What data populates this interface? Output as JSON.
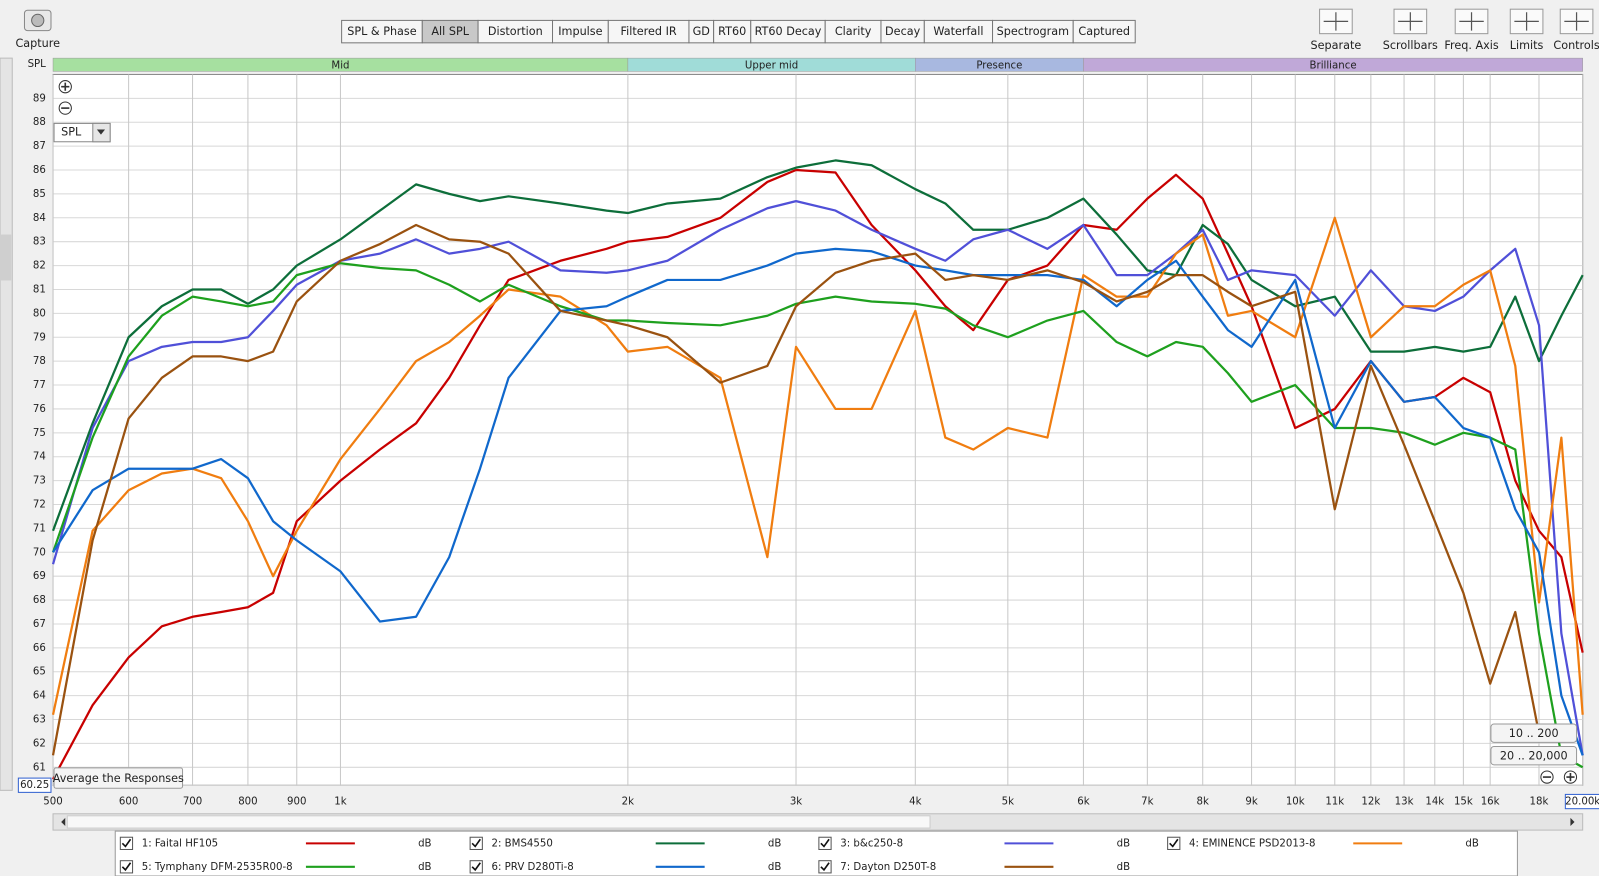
{
  "toolbar": {
    "capture": "Capture",
    "tabs": [
      "SPL & Phase",
      "All SPL",
      "Distortion",
      "Impulse",
      "Filtered IR",
      "GD",
      "RT60",
      "RT60 Decay",
      "Clarity",
      "Decay",
      "Waterfall",
      "Spectrogram",
      "Captured"
    ],
    "selected_tab": 1,
    "tools": [
      "Separate",
      "Scrollbars",
      "Freq. Axis",
      "Limits",
      "Controls"
    ]
  },
  "controls": {
    "dropdown": "SPL",
    "average_button": "Average the Responses",
    "range_buttons": [
      "10 .. 200",
      "20 .. 20,000"
    ]
  },
  "chart_data": {
    "type": "line",
    "y_axis_label": "SPL",
    "x_scale": "log",
    "grid": true,
    "legend_unit": "dB",
    "bands": [
      {
        "label": "Mid",
        "from": 500,
        "to": 2000,
        "color": "#a6e0a0"
      },
      {
        "label": "Upper mid",
        "from": 2000,
        "to": 4000,
        "color": "#a0dcd8"
      },
      {
        "label": "Presence",
        "from": 4000,
        "to": 6000,
        "color": "#a8b8e0"
      },
      {
        "label": "Brilliance",
        "from": 6000,
        "to": 20000,
        "color": "#c0a8d8"
      }
    ],
    "xlim": [
      500,
      20000
    ],
    "xticks": [
      500,
      600,
      700,
      800,
      900,
      {
        "value": 1000,
        "label": "1k"
      },
      {
        "value": 2000,
        "label": "2k"
      },
      {
        "value": 3000,
        "label": "3k"
      },
      {
        "value": 4000,
        "label": "4k"
      },
      {
        "value": 5000,
        "label": "5k"
      },
      {
        "value": 6000,
        "label": "6k"
      },
      {
        "value": 7000,
        "label": "7k"
      },
      {
        "value": 8000,
        "label": "8k"
      },
      {
        "value": 9000,
        "label": "9k"
      },
      {
        "value": 10000,
        "label": "10k"
      },
      {
        "value": 11000,
        "label": "11k"
      },
      {
        "value": 12000,
        "label": "12k"
      },
      {
        "value": 13000,
        "label": "13k"
      },
      {
        "value": 14000,
        "label": "14k"
      },
      {
        "value": 15000,
        "label": "15k"
      },
      {
        "value": 16000,
        "label": "16k"
      },
      {
        "value": 18000,
        "label": "18k"
      },
      {
        "value": 20000,
        "label": "20.00k"
      }
    ],
    "ylim": [
      60.25,
      90
    ],
    "yticks": [
      60.25,
      61,
      62,
      63,
      64,
      65,
      66,
      67,
      68,
      69,
      70,
      71,
      72,
      73,
      74,
      75,
      76,
      77,
      78,
      79,
      80,
      81,
      82,
      83,
      84,
      85,
      86,
      87,
      88,
      89
    ],
    "x": [
      500,
      550,
      600,
      650,
      700,
      750,
      800,
      850,
      900,
      1000,
      1100,
      1200,
      1300,
      1400,
      1500,
      1700,
      1900,
      2000,
      2200,
      2500,
      2800,
      3000,
      3300,
      3600,
      4000,
      4300,
      4600,
      5000,
      5500,
      6000,
      6500,
      7000,
      7500,
      8000,
      8500,
      9000,
      10000,
      11000,
      12000,
      13000,
      14000,
      15000,
      16000,
      17000,
      18000,
      19000,
      20000
    ],
    "series": [
      {
        "name": "1: Faital HF105",
        "color": "#c80000",
        "values": [
          60.5,
          63.6,
          65.6,
          66.9,
          67.3,
          67.5,
          67.7,
          68.3,
          71.3,
          73,
          74.3,
          75.4,
          77.3,
          79.5,
          81.4,
          82.2,
          82.7,
          83,
          83.2,
          84,
          85.5,
          86,
          85.9,
          83.7,
          81.8,
          80.3,
          79.3,
          81.4,
          82,
          83.7,
          83.5,
          84.8,
          85.8,
          84.8,
          82.5,
          80.3,
          75.2,
          76,
          78,
          76.3,
          76.5,
          77.3,
          76.7,
          73,
          70.9,
          69.8,
          65.8
        ]
      },
      {
        "name": "2: BMS4550",
        "color": "#0d6e3a",
        "values": [
          70.9,
          75.4,
          79,
          80.3,
          81,
          81,
          80.4,
          81,
          82,
          83.1,
          84.3,
          85.4,
          85,
          84.7,
          84.9,
          84.6,
          84.3,
          84.2,
          84.6,
          84.8,
          85.7,
          86.1,
          86.4,
          86.2,
          85.2,
          84.6,
          83.5,
          83.5,
          84,
          84.8,
          83.3,
          81.8,
          81.6,
          83.7,
          82.9,
          81.4,
          80.3,
          80.7,
          78.4,
          78.4,
          78.6,
          78.4,
          78.6,
          80.7,
          78,
          79.9,
          81.6
        ]
      },
      {
        "name": "3: b&c250-8",
        "color": "#5050d8",
        "values": [
          69.5,
          75.2,
          78,
          78.6,
          78.8,
          78.8,
          79,
          80.1,
          81.2,
          82.2,
          82.5,
          83.1,
          82.5,
          82.7,
          83,
          81.8,
          81.7,
          81.8,
          82.2,
          83.5,
          84.4,
          84.7,
          84.3,
          83.5,
          82.7,
          82.2,
          83.1,
          83.5,
          82.7,
          83.7,
          81.6,
          81.6,
          82.5,
          83.5,
          81.4,
          81.8,
          81.6,
          79.9,
          81.8,
          80.3,
          80.1,
          80.7,
          81.8,
          82.7,
          79.5,
          66.6,
          61.5
        ]
      },
      {
        "name": "4: EMINENCE PSD2013-8",
        "color": "#f07d10",
        "values": [
          63.2,
          70.9,
          72.6,
          73.3,
          73.5,
          73.1,
          71.3,
          69,
          70.9,
          73.9,
          76,
          78,
          78.8,
          79.9,
          81,
          80.7,
          79.5,
          78.4,
          78.6,
          77.3,
          69.8,
          78.6,
          76,
          76,
          80.1,
          74.8,
          74.3,
          75.2,
          74.8,
          81.6,
          80.7,
          80.7,
          82.5,
          83.3,
          79.9,
          80.1,
          79,
          84,
          79,
          80.3,
          80.3,
          81.2,
          81.8,
          77.8,
          67.9,
          74.8,
          63.2
        ]
      },
      {
        "name": "5: Tymphany DFM-2535R00-8",
        "color": "#1ea01e",
        "values": [
          70,
          74.8,
          78.2,
          79.9,
          80.7,
          80.5,
          80.3,
          80.5,
          81.6,
          82.1,
          81.9,
          81.8,
          81.2,
          80.5,
          81.2,
          80.3,
          79.7,
          79.7,
          79.6,
          79.5,
          79.9,
          80.4,
          80.7,
          80.5,
          80.4,
          80.2,
          79.5,
          79,
          79.7,
          80.1,
          78.8,
          78.2,
          78.8,
          78.6,
          77.5,
          76.3,
          77,
          75.2,
          75.2,
          75,
          74.5,
          75,
          74.8,
          74.3,
          66.6,
          61.5,
          61
        ]
      },
      {
        "name": "6: PRV D280Ti-8",
        "color": "#1068cc",
        "values": [
          70,
          72.6,
          73.5,
          73.5,
          73.5,
          73.9,
          73.1,
          71.3,
          70.5,
          69.2,
          67.1,
          67.3,
          69.8,
          73.5,
          77.3,
          80.1,
          80.3,
          80.7,
          81.4,
          81.4,
          82,
          82.5,
          82.7,
          82.6,
          82,
          81.8,
          81.6,
          81.6,
          81.6,
          81.4,
          80.3,
          81.4,
          82.2,
          80.7,
          79.3,
          78.6,
          81.4,
          75.2,
          78,
          76.3,
          76.5,
          75.2,
          74.8,
          71.8,
          70,
          64,
          61.5
        ]
      },
      {
        "name": "7: Dayton  D250T-8",
        "color": "#9a5210",
        "values": [
          61.5,
          70.5,
          75.6,
          77.3,
          78.2,
          78.2,
          78,
          78.4,
          80.5,
          82.2,
          82.9,
          83.7,
          83.1,
          83,
          82.5,
          80.1,
          79.7,
          79.5,
          79,
          77.1,
          77.8,
          80.3,
          81.7,
          82.2,
          82.5,
          81.4,
          81.6,
          81.4,
          81.8,
          81.3,
          80.5,
          80.9,
          81.6,
          81.6,
          80.9,
          80.3,
          80.9,
          71.8,
          77.8,
          74.5,
          71.3,
          68.3,
          64.5,
          67.5,
          62.4,
          null,
          null
        ]
      }
    ]
  }
}
